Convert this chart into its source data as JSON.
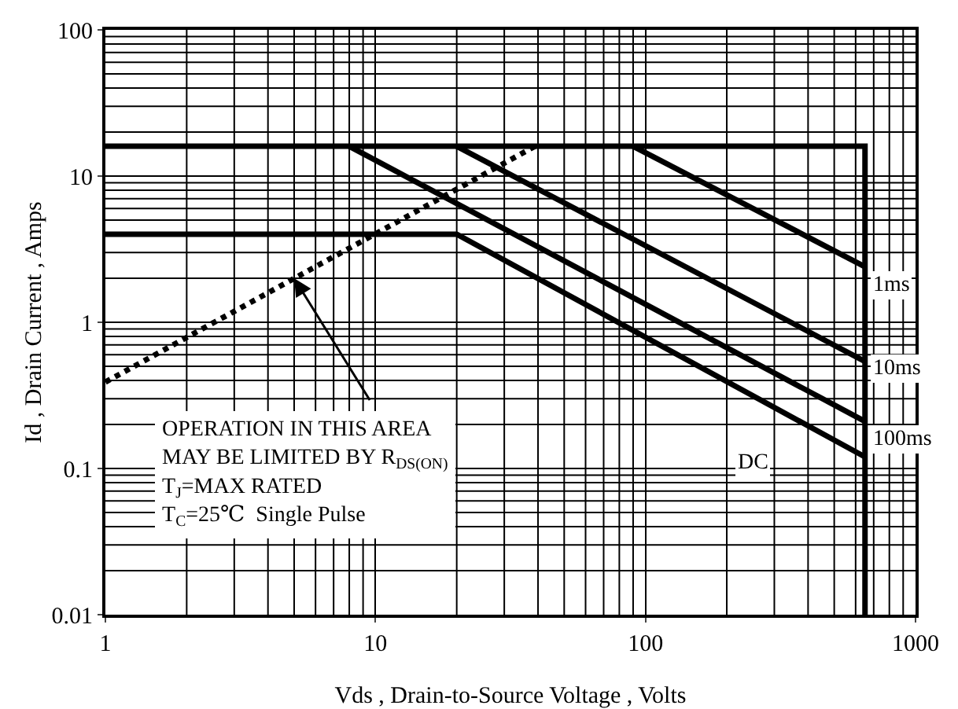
{
  "chart_data": {
    "type": "line",
    "xlabel": "Vds , Drain-to-Source Voltage , Volts",
    "ylabel": "Id , Drain Current , Amps",
    "log": "xy",
    "xlim": [
      1,
      1000
    ],
    "ylim": [
      0.01,
      100
    ],
    "xticks": [
      1,
      10,
      100,
      1000
    ],
    "yticks": [
      0.01,
      0.1,
      1,
      10,
      100
    ],
    "grid": true,
    "marker": "none",
    "line_style": "solid",
    "series": [
      {
        "color": "#000000",
        "x": [
          1,
          650,
          650
        ],
        "values": [
          16,
          16,
          0.01
        ]
      },
      {
        "color": "#000000",
        "x": [
          1,
          20,
          650
        ],
        "values": [
          4,
          4,
          0.12
        ]
      },
      {
        "color": "#000000",
        "x": [
          8,
          650
        ],
        "values": [
          16,
          0.21
        ]
      },
      {
        "color": "#000000",
        "x": [
          20,
          650
        ],
        "values": [
          16,
          0.54
        ]
      },
      {
        "color": "#000000",
        "x": [
          90,
          650
        ],
        "values": [
          16,
          2.4
        ]
      },
      {
        "color": "#000000",
        "x": [
          1,
          39
        ],
        "values": [
          0.39,
          16
        ],
        "line_style": "dotted"
      }
    ],
    "annotations": [
      {
        "text": "OPERATION IN THIS AREA",
        "x": 5,
        "y": 2
      },
      "MAY BE LIMITED BY R$_{DS(ON)}$",
      "T$_{J}$=MAX RATED",
      "T$_{C}$=25℃  Single Pulse",
      {
        "text": "1ms",
        "x": 650,
        "y": 1.8
      },
      {
        "text": "10ms",
        "x": 650,
        "y": 0.48
      },
      {
        "text": "100ms",
        "x": 650,
        "y": 0.16
      },
      {
        "text": "DC",
        "x": 250,
        "y": 0.11
      }
    ]
  }
}
